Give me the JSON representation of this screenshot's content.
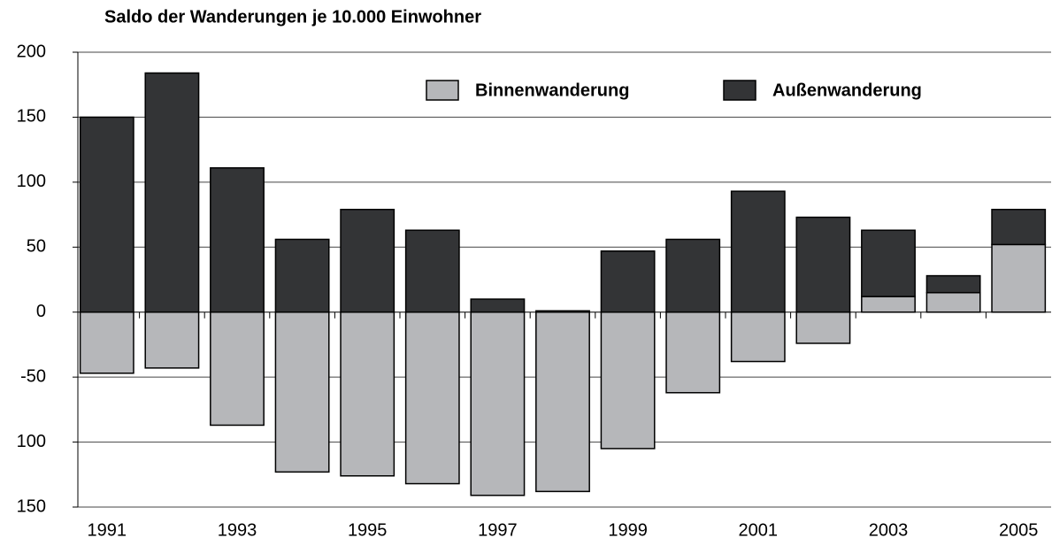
{
  "chart_data": {
    "type": "bar",
    "stacked": true,
    "title": "Saldo der Wanderungen je 10.000 Einwohner",
    "categories": [
      "1991",
      null,
      "1993",
      null,
      "1995",
      null,
      "1997",
      null,
      "1999",
      null,
      "2001",
      null,
      "2003",
      null,
      "2005"
    ],
    "series": [
      {
        "name": "Binnenwanderung",
        "color": "#b6b7ba",
        "values": [
          -47,
          -43,
          -87,
          -123,
          -126,
          -132,
          -141,
          -138,
          -105,
          -62,
          -38,
          -24,
          12,
          15,
          52
        ]
      },
      {
        "name": "Außenwanderung",
        "color": "#333436",
        "values": [
          150,
          184,
          111,
          56,
          79,
          63,
          10,
          1,
          47,
          56,
          93,
          73,
          51,
          13,
          27
        ]
      }
    ],
    "ylim": [
      -150,
      200
    ],
    "yticks": [
      200,
      150,
      100,
      50,
      0,
      -50,
      {
        "value": -100,
        "label": "100"
      },
      {
        "value": -150,
        "label": "150"
      }
    ],
    "grid": true
  }
}
